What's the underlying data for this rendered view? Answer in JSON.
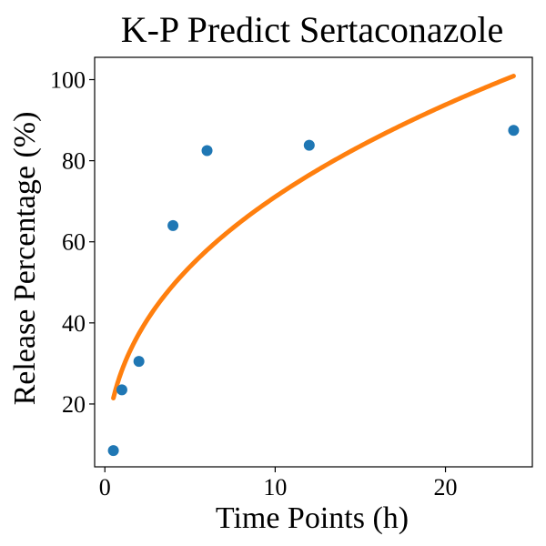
{
  "chart_data": {
    "type": "scatter",
    "title": "K-P Predict Sertaconazole",
    "xlabel": "Time Points (h)",
    "ylabel": "Release Percentage (%)",
    "xlim": [
      -0.6,
      25.1
    ],
    "ylim": [
      4.5,
      105.5
    ],
    "xticks": [
      0,
      10,
      20
    ],
    "yticks": [
      20,
      40,
      60,
      80,
      100
    ],
    "grid": false,
    "series": [
      {
        "type": "scatter",
        "color": "#1f77b4",
        "x": [
          0.5,
          1,
          2,
          4,
          6,
          12,
          24
        ],
        "y": [
          8.5,
          23.5,
          30.5,
          64,
          82.5,
          83.8,
          87.5
        ]
      },
      {
        "type": "line",
        "color": "#ff7f0e",
        "model": "korsmeyer-peppas",
        "k": 28.3,
        "n": 0.4,
        "x_range": [
          0.5,
          24
        ]
      }
    ]
  }
}
